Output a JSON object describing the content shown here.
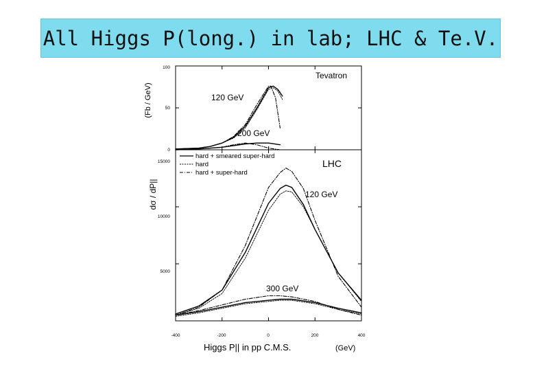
{
  "slide_title": "All Higgs P(long.) in lab; LHC & Te.V.",
  "chart_data": [
    {
      "type": "line",
      "panel": "Tevatron",
      "panel_label": "Tevatron",
      "ylabel": "(Fb / GeV)",
      "xlim": [
        -400,
        400
      ],
      "ylim": [
        0,
        100
      ],
      "y_ticks": [
        "0",
        "50",
        "100"
      ],
      "annotations": [
        "120 GeV",
        "200 GeV"
      ],
      "series": [
        {
          "name": "hard + smeared super-hard",
          "group": "120 GeV",
          "style": "solid",
          "x": [
            -400,
            -300,
            -250,
            -200,
            -150,
            -100,
            -50,
            0,
            20,
            40,
            60
          ],
          "y": [
            1,
            2,
            4,
            8,
            15,
            28,
            50,
            74,
            76,
            72,
            64
          ]
        },
        {
          "name": "hard",
          "group": "120 GeV",
          "style": "dashed",
          "x": [
            -400,
            -300,
            -250,
            -200,
            -150,
            -100,
            -50,
            0,
            20,
            40,
            60
          ],
          "y": [
            1,
            2,
            4,
            8,
            14,
            26,
            48,
            72,
            74,
            70,
            60
          ]
        },
        {
          "name": "hard + super-hard",
          "group": "120 GeV",
          "style": "dashdot",
          "x": [
            -400,
            -300,
            -250,
            -200,
            -150,
            -100,
            -50,
            0,
            10,
            30,
            50
          ],
          "y": [
            1,
            2,
            4,
            8,
            16,
            30,
            54,
            76,
            76,
            62,
            26
          ]
        },
        {
          "name": "hard + smeared super-hard",
          "group": "200 GeV",
          "style": "solid",
          "x": [
            -400,
            -300,
            -200,
            -150,
            -100,
            -50,
            0,
            50
          ],
          "y": [
            0,
            1,
            3,
            5,
            7,
            8,
            8,
            6
          ]
        },
        {
          "name": "hard + super-hard",
          "group": "200 GeV",
          "style": "dashdot",
          "x": [
            -400,
            -300,
            -200,
            -150,
            -100,
            -50,
            0,
            50
          ],
          "y": [
            0,
            1,
            3,
            6,
            8,
            6,
            2,
            0
          ]
        }
      ]
    },
    {
      "type": "line",
      "panel": "LHC",
      "panel_label": "LHC",
      "ylabel": "dσ / dP||",
      "xlabel": "Higgs P|| in pp C.M.S.",
      "xunit": "(GeV)",
      "xlim": [
        -400,
        400
      ],
      "ylim": [
        0,
        15000
      ],
      "x_ticks": [
        "-400",
        "-200",
        "0",
        "200",
        "400"
      ],
      "y_ticks": [
        "5000",
        "10000",
        "15000"
      ],
      "annotations": [
        "120 GeV",
        "300 GeV"
      ],
      "legend": [
        "hard + smeared super-hard",
        "hard",
        "hard + super-hard"
      ],
      "legend_position": "top-left",
      "series": [
        {
          "name": "hard + smeared super-hard",
          "group": "120 GeV",
          "style": "solid",
          "x": [
            -400,
            -300,
            -200,
            -100,
            0,
            50,
            75,
            100,
            150,
            200,
            300,
            400
          ],
          "y": [
            600,
            1300,
            2700,
            6000,
            10300,
            11600,
            11900,
            11700,
            10200,
            8000,
            4200,
            1800
          ]
        },
        {
          "name": "hard",
          "group": "120 GeV",
          "style": "dashed",
          "x": [
            -400,
            -300,
            -200,
            -100,
            0,
            50,
            75,
            100,
            150,
            200,
            300,
            400
          ],
          "y": [
            500,
            1100,
            2400,
            5500,
            9700,
            11100,
            11400,
            11300,
            10000,
            8000,
            4200,
            1700
          ]
        },
        {
          "name": "hard + super-hard",
          "group": "120 GeV",
          "style": "dashdot",
          "x": [
            -400,
            -300,
            -200,
            -100,
            0,
            50,
            75,
            100,
            150,
            200,
            300,
            400
          ],
          "y": [
            500,
            1200,
            2700,
            6600,
            11700,
            13000,
            13400,
            13100,
            11600,
            8800,
            3900,
            1200
          ]
        },
        {
          "name": "hard + smeared super-hard",
          "group": "300 GeV",
          "style": "solid",
          "x": [
            -400,
            -300,
            -200,
            -100,
            0,
            50,
            100,
            200,
            300,
            400
          ],
          "y": [
            500,
            800,
            1200,
            1600,
            1800,
            1900,
            1900,
            1600,
            1100,
            700
          ]
        },
        {
          "name": "hard",
          "group": "300 GeV",
          "style": "dashed",
          "x": [
            -400,
            -300,
            -200,
            -100,
            0,
            50,
            100,
            200,
            300,
            400
          ],
          "y": [
            400,
            700,
            1100,
            1500,
            1700,
            1800,
            1800,
            1500,
            1000,
            600
          ]
        },
        {
          "name": "hard + super-hard",
          "group": "300 GeV",
          "style": "dashdot",
          "x": [
            -400,
            -300,
            -200,
            -100,
            0,
            50,
            100,
            200,
            300,
            400
          ],
          "y": [
            500,
            900,
            1400,
            1900,
            2200,
            2200,
            2100,
            1700,
            1000,
            500
          ]
        }
      ]
    }
  ]
}
